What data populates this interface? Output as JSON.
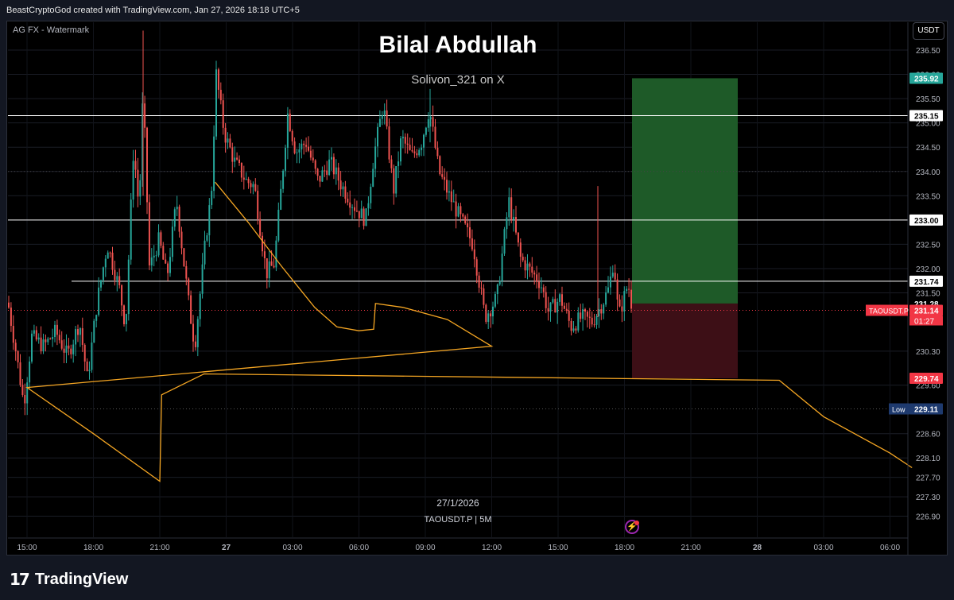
{
  "header": {
    "credit": "BeastCryptoGod created with TradingView.com, Jan 27, 2026 18:18 UTC+5"
  },
  "chart": {
    "watermark_label": "AG FX - Watermark",
    "title": "Bilal Abdullah",
    "subtitle": "Solivon_321 on X",
    "date_label": "27/1/2026",
    "symbol_label": "TAOUSDT.P | 5M",
    "currency_button": "USDT",
    "symbol_tag": "TAOUSDT.P",
    "countdown": "01:27",
    "low_tag": "Low",
    "icon": "lightning-bolt-icon"
  },
  "footer": {
    "brand_logo": "17",
    "brand_name": "TradingView"
  },
  "colors": {
    "up": "#26a69a",
    "down": "#ef5350",
    "profit_zone": "#1e5a28",
    "loss_zone": "#3d0f16",
    "ma_line": "#f5a623",
    "low_tag": "#1e3a6e"
  },
  "chart_data": {
    "type": "candlestick",
    "symbol": "TAOUSDT.P",
    "timeframe": "5M",
    "y_ticks": [
      "236.50",
      "236.00",
      "235.50",
      "235.00",
      "234.50",
      "234.00",
      "233.50",
      "233.00",
      "232.50",
      "232.00",
      "231.50",
      "230.30",
      "229.60",
      "228.60",
      "228.10",
      "227.70",
      "227.30",
      "226.90"
    ],
    "x_ticks": [
      "15:00",
      "18:00",
      "21:00",
      "27",
      "03:00",
      "06:00",
      "09:00",
      "12:00",
      "15:00",
      "18:00",
      "21:00",
      "28",
      "03:00",
      "06:00"
    ],
    "horizontal_lines": [
      "235.15",
      "233.00",
      "231.74"
    ],
    "price_tags": [
      {
        "label": "235.92",
        "value": 235.92,
        "color": "#26a69a"
      },
      {
        "label": "235.15",
        "value": 235.15,
        "color": "#ffffff"
      },
      {
        "label": "233.00",
        "value": 233.0,
        "color": "#ffffff"
      },
      {
        "label": "231.74",
        "value": 231.74,
        "color": "#ffffff"
      },
      {
        "label": "231.28",
        "value": 231.28,
        "color": "#000000"
      },
      {
        "label": "231.14",
        "value": 231.14,
        "color": "#f23645"
      },
      {
        "label": "229.74",
        "value": 229.74,
        "color": "#f23645"
      },
      {
        "label": "229.11",
        "value": 229.11,
        "color": "#1e3a6e"
      }
    ],
    "position": {
      "entry": 231.28,
      "target": 235.92,
      "stop": 229.74
    },
    "last_price": 231.14,
    "session_low": 229.11,
    "ma_curve": [
      {
        "t": "23:30",
        "v": 233.78
      },
      {
        "t": "01:00",
        "v": 232.95
      },
      {
        "t": "02:30",
        "v": 232.05
      },
      {
        "t": "04:00",
        "v": 231.2
      },
      {
        "t": "05:00",
        "v": 230.8
      },
      {
        "t": "06:00",
        "v": 230.72
      },
      {
        "t": "06:40",
        "v": 230.75
      },
      {
        "t": "06:45",
        "v": 231.28
      },
      {
        "t": "08:00",
        "v": 231.2
      },
      {
        "t": "10:00",
        "v": 230.95
      },
      {
        "t": "12:00",
        "v": 230.4
      },
      {
        "t": "15:00",
        "v": 229.55
      },
      {
        "t": "18:00",
        "v": 228.6
      },
      {
        "t": "21:00",
        "v": 227.62
      },
      {
        "t": "21:05",
        "v": 229.4
      },
      {
        "t": "23:00",
        "v": 229.83
      },
      {
        "t": "28 01:00",
        "v": 229.7
      },
      {
        "t": "28 03:00",
        "v": 228.95
      },
      {
        "t": "28 06:00",
        "v": 228.2
      },
      {
        "t": "28 07:00",
        "v": 227.9
      }
    ]
  }
}
